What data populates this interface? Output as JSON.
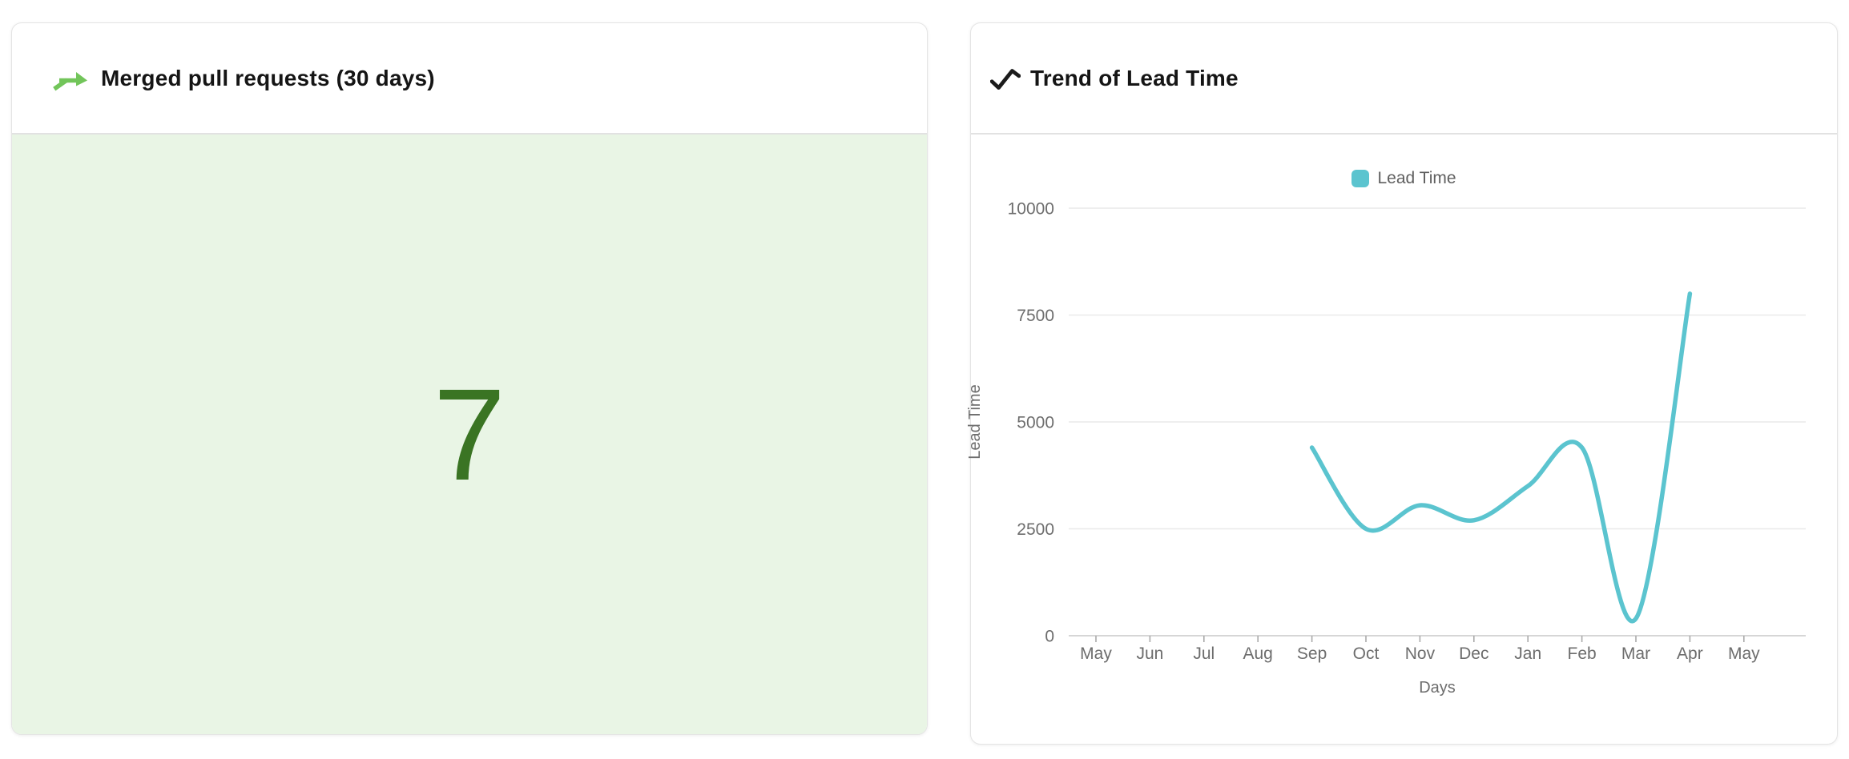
{
  "left_card": {
    "title": "Merged pull requests (30 days)",
    "icon": "git-merge-icon",
    "icon_color": "#72C55A",
    "value": "7",
    "value_color": "#3A7423",
    "panel_bg": "#E9F5E5"
  },
  "right_card": {
    "title": "Trend of Lead Time",
    "icon": "trend-up-icon",
    "icon_color": "#1b1b1b"
  },
  "chart_data": {
    "type": "line",
    "title": "Trend of Lead Time",
    "categories": [
      "May",
      "Jun",
      "Jul",
      "Aug",
      "Sep",
      "Oct",
      "Nov",
      "Dec",
      "Jan",
      "Feb",
      "Mar",
      "Apr",
      "May"
    ],
    "series": [
      {
        "name": "Lead Time",
        "color": "#5BC4CF",
        "values": [
          null,
          null,
          null,
          null,
          4400,
          2500,
          3050,
          2700,
          3500,
          4400,
          400,
          8000,
          null
        ]
      }
    ],
    "xlabel": "Days",
    "ylabel": "Lead Time",
    "ylim": [
      0,
      10000
    ],
    "yticks": [
      0,
      2500,
      5000,
      7500,
      10000
    ],
    "ytick_labels": [
      "0",
      "2500",
      "5000",
      "7500",
      "10000"
    ],
    "legend": {
      "position": "top",
      "items": [
        "Lead Time"
      ]
    },
    "grid": true,
    "smooth": true,
    "grid_color": "#e9e9e9",
    "axis_line_color": "#c9c9c9",
    "tick_color": "#aaaaaa",
    "label_color": "#6d6d6d"
  }
}
